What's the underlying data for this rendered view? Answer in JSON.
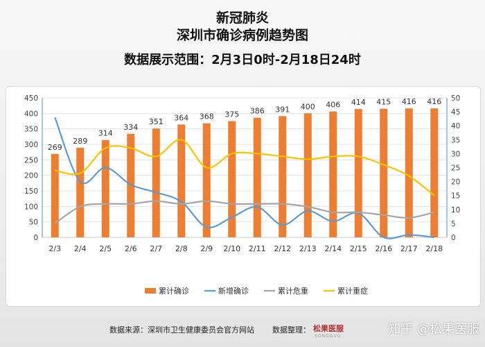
{
  "header": {
    "title1": "新冠肺炎",
    "title2": "深圳市确诊病例趋势图",
    "range": "数据展示范围：2月3日0时-2月18日24时"
  },
  "chart_data": {
    "type": "bar",
    "categories": [
      "2/3",
      "2/4",
      "2/5",
      "2/6",
      "2/7",
      "2/8",
      "2/9",
      "2/10",
      "2/11",
      "2/12",
      "2/13",
      "2/14",
      "2/15",
      "2/16",
      "2/17",
      "2/18"
    ],
    "left_axis": {
      "ylim": [
        0,
        450
      ],
      "ticks": [
        0,
        50,
        100,
        150,
        200,
        250,
        300,
        350,
        400,
        450
      ]
    },
    "right_axis": {
      "ylim": [
        0,
        50
      ],
      "ticks": [
        0,
        5,
        10,
        15,
        20,
        25,
        30,
        35,
        40,
        45,
        50
      ]
    },
    "series": [
      {
        "name": "累计确诊",
        "type": "bar",
        "axis": "left",
        "color": "#ed7d31",
        "values": [
          269,
          289,
          314,
          334,
          351,
          364,
          368,
          375,
          386,
          391,
          400,
          406,
          414,
          415,
          416,
          416
        ],
        "labels": [
          "269",
          "289",
          "314",
          "334",
          "351",
          "364",
          "368",
          "375",
          "386",
          "391",
          "400",
          "406",
          "414",
          "415",
          "416",
          "416"
        ]
      },
      {
        "name": "新增确诊",
        "type": "line",
        "axis": "left",
        "color": "#5b9bd5",
        "values": [
          387,
          180,
          225,
          170,
          145,
          115,
          33,
          65,
          98,
          40,
          85,
          52,
          78,
          0,
          8,
          0
        ]
      },
      {
        "name": "累计危重",
        "type": "line",
        "axis": "right",
        "color": "#a5a5a5",
        "values": [
          5,
          11,
          12,
          12,
          13,
          12,
          13,
          12,
          12,
          12,
          11,
          9,
          9,
          8,
          7,
          9
        ]
      },
      {
        "name": "累计重症",
        "type": "line",
        "axis": "right",
        "color": "#ffc000",
        "values": [
          24,
          23,
          32,
          32,
          29,
          35,
          25,
          30,
          30,
          29,
          28,
          29,
          29,
          26,
          22,
          15
        ]
      }
    ],
    "legend": "bottom"
  },
  "footer": {
    "source": "数据来源：深圳市卫生健康委员会官方网站",
    "organizer": "数据整理：",
    "logo_cn": "松果医服",
    "logo_en": "SONGGUO",
    "watermark": "知乎 @松果医服"
  }
}
